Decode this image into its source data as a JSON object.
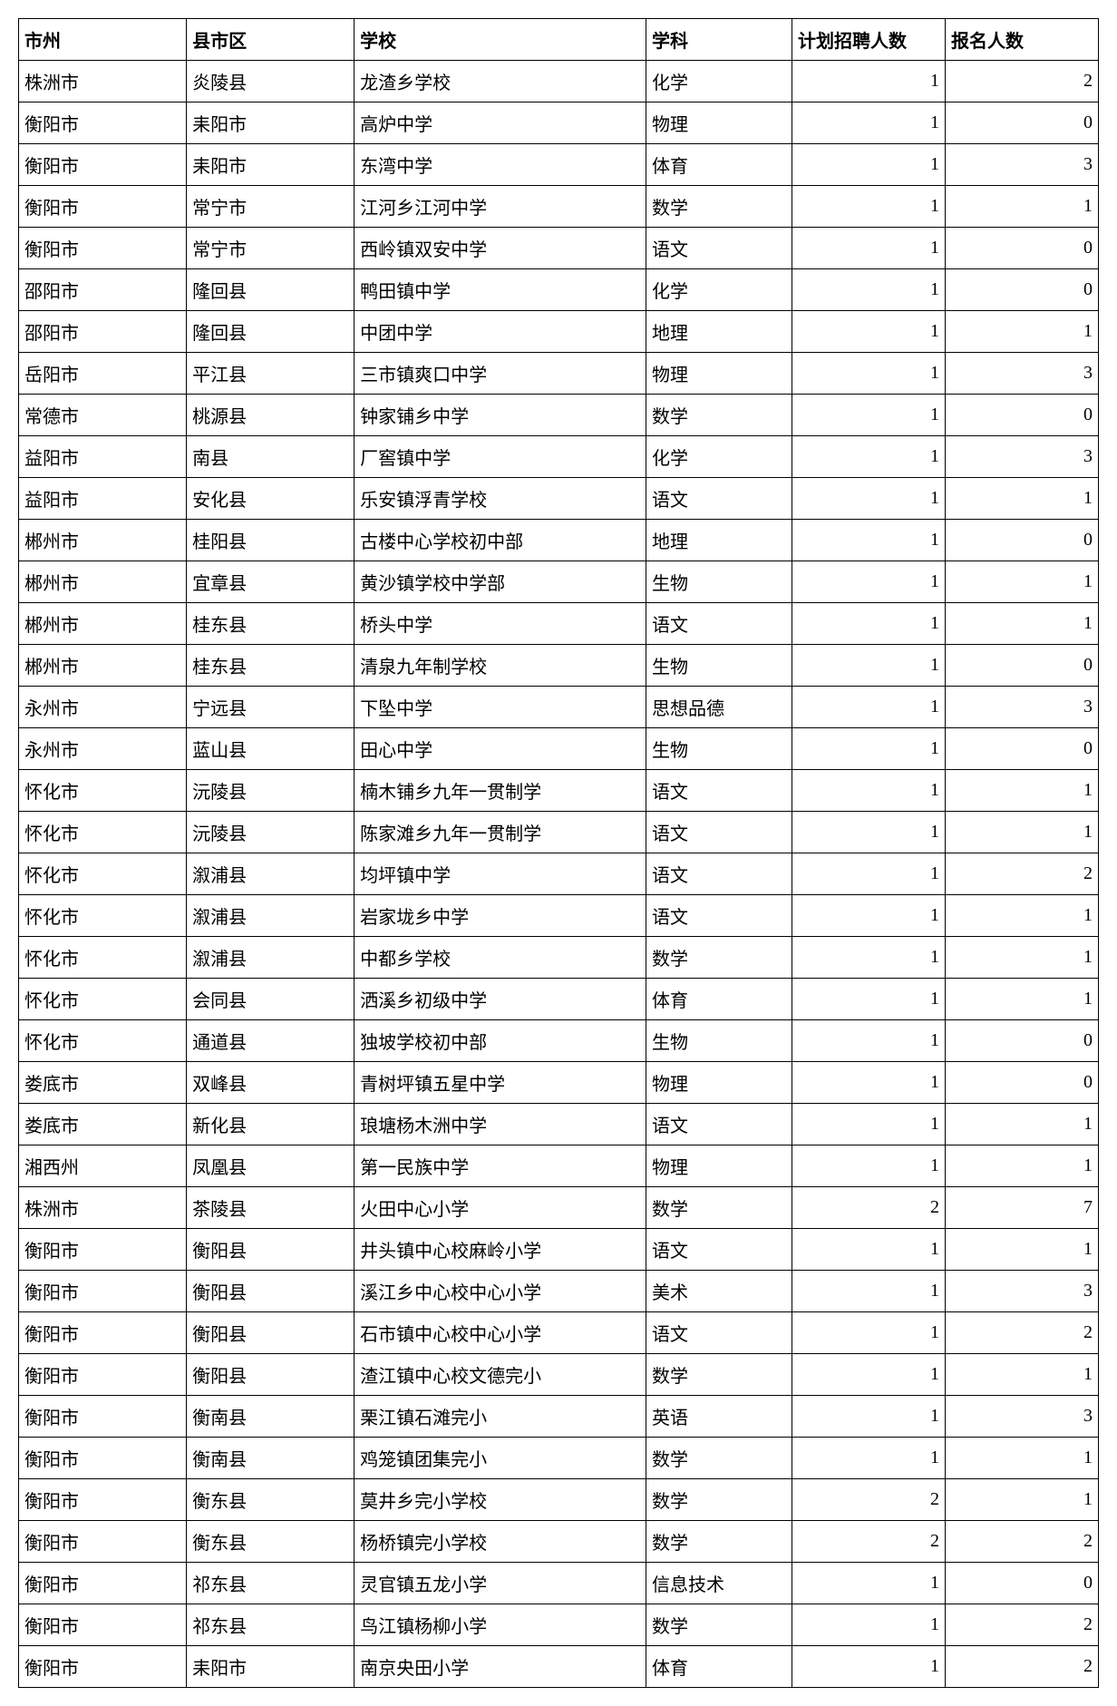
{
  "table": {
    "columns": [
      "市州",
      "县市区",
      "学校",
      "学科",
      "计划招聘人数",
      "报名人数"
    ],
    "rows": [
      [
        "株洲市",
        "炎陵县",
        "龙渣乡学校",
        "化学",
        1,
        2
      ],
      [
        "衡阳市",
        "耒阳市",
        "高炉中学",
        "物理",
        1,
        0
      ],
      [
        "衡阳市",
        "耒阳市",
        "东湾中学",
        "体育",
        1,
        3
      ],
      [
        "衡阳市",
        "常宁市",
        "江河乡江河中学",
        "数学",
        1,
        1
      ],
      [
        "衡阳市",
        "常宁市",
        "西岭镇双安中学",
        "语文",
        1,
        0
      ],
      [
        "邵阳市",
        "隆回县",
        "鸭田镇中学",
        "化学",
        1,
        0
      ],
      [
        "邵阳市",
        "隆回县",
        "中团中学",
        "地理",
        1,
        1
      ],
      [
        "岳阳市",
        "平江县",
        "三市镇爽口中学",
        "物理",
        1,
        3
      ],
      [
        "常德市",
        "桃源县",
        "钟家铺乡中学",
        "数学",
        1,
        0
      ],
      [
        "益阳市",
        "南县",
        "厂窖镇中学",
        "化学",
        1,
        3
      ],
      [
        "益阳市",
        "安化县",
        "乐安镇浮青学校",
        "语文",
        1,
        1
      ],
      [
        "郴州市",
        "桂阳县",
        "古楼中心学校初中部",
        "地理",
        1,
        0
      ],
      [
        "郴州市",
        "宜章县",
        "黄沙镇学校中学部",
        "生物",
        1,
        1
      ],
      [
        "郴州市",
        "桂东县",
        "桥头中学",
        "语文",
        1,
        1
      ],
      [
        "郴州市",
        "桂东县",
        "清泉九年制学校",
        "生物",
        1,
        0
      ],
      [
        "永州市",
        "宁远县",
        "下坠中学",
        "思想品德",
        1,
        3
      ],
      [
        "永州市",
        "蓝山县",
        "田心中学",
        "生物",
        1,
        0
      ],
      [
        "怀化市",
        "沅陵县",
        "楠木铺乡九年一贯制学",
        "语文",
        1,
        1
      ],
      [
        "怀化市",
        "沅陵县",
        "陈家滩乡九年一贯制学",
        "语文",
        1,
        1
      ],
      [
        "怀化市",
        "溆浦县",
        "均坪镇中学",
        "语文",
        1,
        2
      ],
      [
        "怀化市",
        "溆浦县",
        "岩家垅乡中学",
        "语文",
        1,
        1
      ],
      [
        "怀化市",
        "溆浦县",
        "中都乡学校",
        "数学",
        1,
        1
      ],
      [
        "怀化市",
        "会同县",
        "洒溪乡初级中学",
        "体育",
        1,
        1
      ],
      [
        "怀化市",
        "通道县",
        "独坡学校初中部",
        "生物",
        1,
        0
      ],
      [
        "娄底市",
        "双峰县",
        "青树坪镇五星中学",
        "物理",
        1,
        0
      ],
      [
        "娄底市",
        "新化县",
        "琅塘杨木洲中学",
        "语文",
        1,
        1
      ],
      [
        "湘西州",
        "凤凰县",
        "第一民族中学",
        "物理",
        1,
        1
      ],
      [
        "株洲市",
        "茶陵县",
        "火田中心小学",
        "数学",
        2,
        7
      ],
      [
        "衡阳市",
        "衡阳县",
        "井头镇中心校麻岭小学",
        "语文",
        1,
        1
      ],
      [
        "衡阳市",
        "衡阳县",
        "溪江乡中心校中心小学",
        "美术",
        1,
        3
      ],
      [
        "衡阳市",
        "衡阳县",
        "石市镇中心校中心小学",
        "语文",
        1,
        2
      ],
      [
        "衡阳市",
        "衡阳县",
        "渣江镇中心校文德完小",
        "数学",
        1,
        1
      ],
      [
        "衡阳市",
        "衡南县",
        "栗江镇石滩完小",
        "英语",
        1,
        3
      ],
      [
        "衡阳市",
        "衡南县",
        "鸡笼镇团集完小",
        "数学",
        1,
        1
      ],
      [
        "衡阳市",
        "衡东县",
        "莫井乡完小学校",
        "数学",
        2,
        1
      ],
      [
        "衡阳市",
        "衡东县",
        "杨桥镇完小学校",
        "数学",
        2,
        2
      ],
      [
        "衡阳市",
        "祁东县",
        "灵官镇五龙小学",
        "信息技术",
        1,
        0
      ],
      [
        "衡阳市",
        "祁东县",
        "鸟江镇杨柳小学",
        "数学",
        1,
        2
      ],
      [
        "衡阳市",
        "耒阳市",
        "南京央田小学",
        "体育",
        1,
        2
      ]
    ],
    "border_color": "#000000",
    "background_color": "#ffffff",
    "font_size": 20,
    "header_font_weight": "bold"
  }
}
